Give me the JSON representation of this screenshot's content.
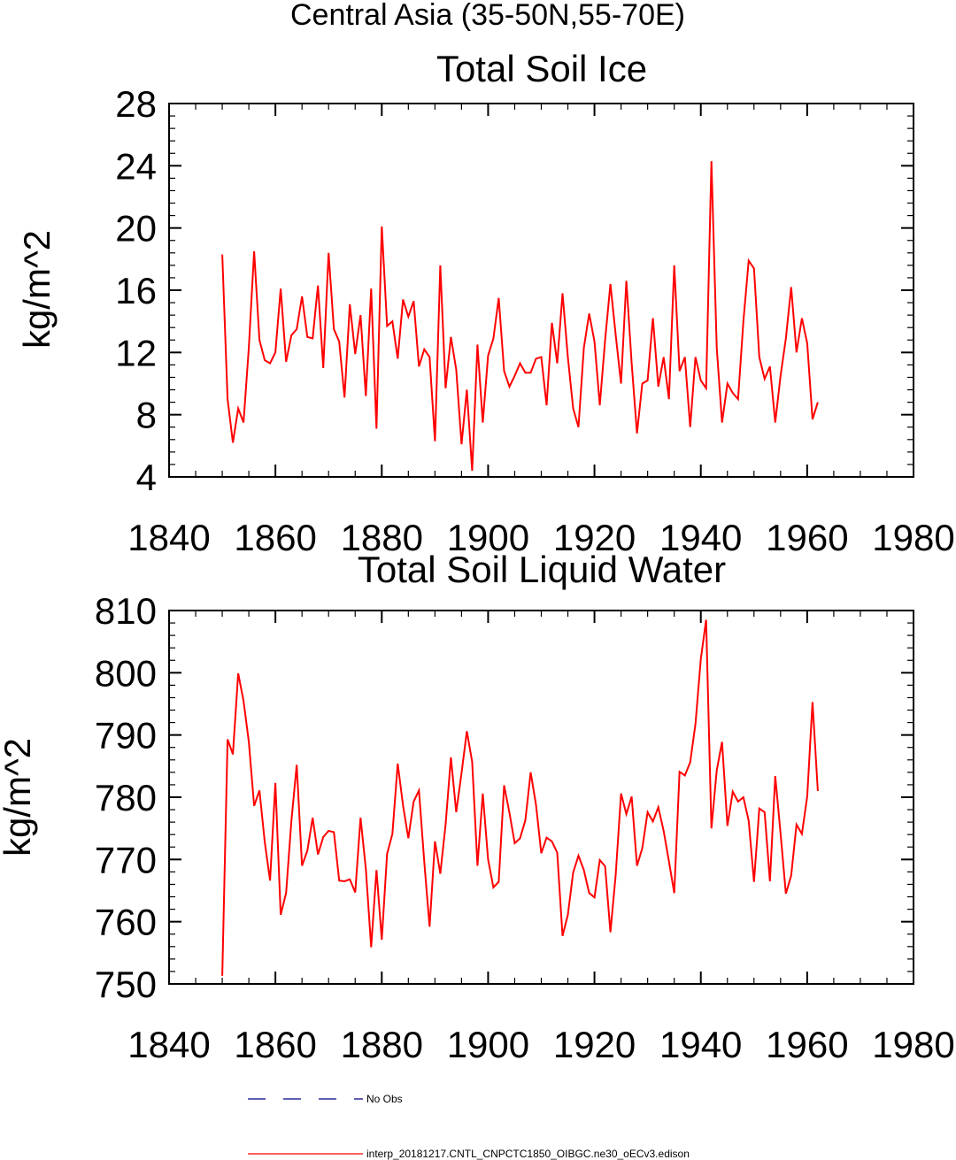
{
  "suptitle": "Central Asia (35-50N,55-70E)",
  "colors": {
    "model": "#ff0000",
    "obs": "#000080",
    "axis": "#000000"
  },
  "legend": {
    "obs_label": "No Obs",
    "model_label": "interp_20181217.CNTL_CNPCTC1850_OIBGC.ne30_oECv3.edison"
  },
  "chart_data": [
    {
      "type": "line",
      "title": "Total Soil Ice",
      "xlabel": "",
      "ylabel": "kg/m^2",
      "xlim": [
        1840,
        1980
      ],
      "ylim": [
        4,
        28
      ],
      "xticks": [
        1840,
        1860,
        1880,
        1900,
        1920,
        1940,
        1960,
        1980
      ],
      "yticks": [
        4,
        8,
        12,
        16,
        20,
        24,
        28
      ],
      "x_start": 1850,
      "x_step": 1,
      "series": [
        {
          "values": [
            18.3,
            9.0,
            6.2,
            8.4,
            7.5,
            12.3,
            18.5,
            12.8,
            11.5,
            11.3,
            12.0,
            16.1,
            11.4,
            13.1,
            13.5,
            15.6,
            13.0,
            12.9,
            16.3,
            11.0,
            18.4,
            13.5,
            12.7,
            9.1,
            15.1,
            11.9,
            14.4,
            9.2,
            16.1,
            7.1,
            20.1,
            13.7,
            14.0,
            11.6,
            15.4,
            14.3,
            15.3,
            11.1,
            12.2,
            11.7,
            6.3,
            17.6,
            9.7,
            13.0,
            10.9,
            6.1,
            9.6,
            4.4,
            12.5,
            7.5,
            11.8,
            12.9,
            15.5,
            10.8,
            9.8,
            10.5,
            11.3,
            10.7,
            10.7,
            11.6,
            11.7,
            8.6,
            13.9,
            11.3,
            15.8,
            11.7,
            8.4,
            7.2,
            12.3,
            14.5,
            12.7,
            8.6,
            12.8,
            16.4,
            13.1,
            10.0,
            16.6,
            11.3,
            6.8,
            10.0,
            10.2,
            14.2,
            9.8,
            11.7,
            9.0,
            17.6,
            10.8,
            11.7,
            7.2,
            11.7,
            10.2,
            9.7,
            24.3,
            12.3,
            7.5,
            10.0,
            9.4,
            9.0,
            14.0,
            17.9,
            17.4,
            11.7,
            10.3,
            11.1,
            7.5,
            10.5,
            12.9,
            16.2,
            12.0,
            14.2,
            12.6,
            7.7,
            8.8
          ]
        }
      ]
    },
    {
      "type": "line",
      "title": "Total Soil Liquid Water",
      "xlabel": "",
      "ylabel": "kg/m^2",
      "xlim": [
        1840,
        1980
      ],
      "ylim": [
        750,
        810
      ],
      "xticks": [
        1840,
        1860,
        1880,
        1900,
        1920,
        1940,
        1960,
        1980
      ],
      "yticks": [
        750,
        760,
        770,
        780,
        790,
        800,
        810
      ],
      "x_start": 1850,
      "x_step": 1,
      "series": [
        {
          "values": [
            751.3,
            789.3,
            786.9,
            799.9,
            795.5,
            788.9,
            778.6,
            781.1,
            772.8,
            766.6,
            782.3,
            761.1,
            764.6,
            776.2,
            785.2,
            769.0,
            771.4,
            776.7,
            770.8,
            773.6,
            774.6,
            774.4,
            766.6,
            766.5,
            766.8,
            764.7,
            776.7,
            768.5,
            755.9,
            768.3,
            757.1,
            770.9,
            774.1,
            785.4,
            778.7,
            773.4,
            779.3,
            781.1,
            769.6,
            759.2,
            772.9,
            767.7,
            775.6,
            786.4,
            777.6,
            783.9,
            790.6,
            785.7,
            769.0,
            780.6,
            770.0,
            765.5,
            766.4,
            781.9,
            777.5,
            772.6,
            773.4,
            776.3,
            784.0,
            778.8,
            771.0,
            773.5,
            772.9,
            771.1,
            757.7,
            761.1,
            767.9,
            770.6,
            768.3,
            764.6,
            763.9,
            769.9,
            768.9,
            758.3,
            767.6,
            780.6,
            777.3,
            780.1,
            769.0,
            771.8,
            777.6,
            776.1,
            778.4,
            774.6,
            769.7,
            764.6,
            784.1,
            783.5,
            785.6,
            791.8,
            802.2,
            808.5,
            775.0,
            784.3,
            788.9,
            775.4,
            780.9,
            779.3,
            780.0,
            776.2,
            766.4,
            778.2,
            777.6,
            766.5,
            783.4,
            774.2,
            764.5,
            767.4,
            775.6,
            774.1,
            780.1,
            795.3,
            781.0
          ]
        }
      ]
    }
  ]
}
